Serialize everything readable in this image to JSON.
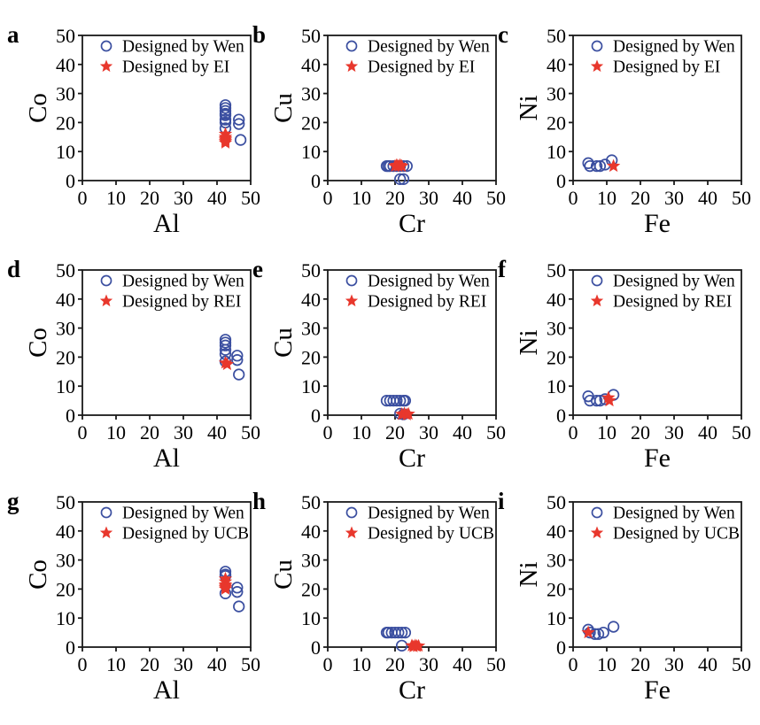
{
  "figure": {
    "background": "#ffffff",
    "axis_color": "#1a1a1a",
    "text_color": "#000000",
    "wen_color": "#3b4fa0",
    "designed_color": "#e8372c"
  },
  "chart_data": [
    {
      "id": "a",
      "type": "scatter",
      "xlabel": "Al",
      "ylabel": "Co",
      "xlim": [
        0,
        50
      ],
      "ylim": [
        0,
        50
      ],
      "xticks": [
        0,
        10,
        20,
        30,
        40,
        50
      ],
      "yticks": [
        0,
        10,
        20,
        30,
        40,
        50
      ],
      "grid": false,
      "legend_position": "top-left-inside",
      "series": [
        {
          "name": "Designed by Wen",
          "marker": "circle",
          "color": "#3b4fa0",
          "points": [
            [
              42.5,
              26
            ],
            [
              42.5,
              25
            ],
            [
              42.5,
              24
            ],
            [
              42.5,
              23
            ],
            [
              42.5,
              22.5
            ],
            [
              42.5,
              21
            ],
            [
              42.5,
              20
            ],
            [
              42.5,
              18
            ],
            [
              46.5,
              21
            ],
            [
              46.5,
              19.5
            ],
            [
              47,
              14
            ]
          ]
        },
        {
          "name": "Designed by EI",
          "marker": "star",
          "color": "#e8372c",
          "points": [
            [
              42.5,
              16
            ],
            [
              42.5,
              15
            ],
            [
              42.5,
              14.5
            ],
            [
              42.5,
              14
            ],
            [
              42.5,
              13.5
            ],
            [
              42.5,
              13
            ]
          ]
        }
      ]
    },
    {
      "id": "b",
      "type": "scatter",
      "xlabel": "Cr",
      "ylabel": "Cu",
      "xlim": [
        0,
        50
      ],
      "ylim": [
        0,
        50
      ],
      "xticks": [
        0,
        10,
        20,
        30,
        40,
        50
      ],
      "yticks": [
        0,
        10,
        20,
        30,
        40,
        50
      ],
      "grid": false,
      "legend_position": "top-left-inside",
      "series": [
        {
          "name": "Designed by Wen",
          "marker": "circle",
          "color": "#3b4fa0",
          "points": [
            [
              17.5,
              5
            ],
            [
              18,
              5
            ],
            [
              18.5,
              5
            ],
            [
              19.5,
              5
            ],
            [
              20.5,
              5
            ],
            [
              21.5,
              5
            ],
            [
              22.5,
              5
            ],
            [
              23.5,
              5
            ],
            [
              21.5,
              0.5
            ],
            [
              22.5,
              0.5
            ]
          ]
        },
        {
          "name": "Designed by EI",
          "marker": "star",
          "color": "#e8372c",
          "points": [
            [
              20,
              5
            ],
            [
              20.5,
              5.3
            ],
            [
              21,
              5
            ],
            [
              21.5,
              5.3
            ],
            [
              22,
              5
            ]
          ]
        }
      ]
    },
    {
      "id": "c",
      "type": "scatter",
      "xlabel": "Fe",
      "ylabel": "Ni",
      "xlim": [
        0,
        50
      ],
      "ylim": [
        0,
        50
      ],
      "xticks": [
        0,
        10,
        20,
        30,
        40,
        50
      ],
      "yticks": [
        0,
        10,
        20,
        30,
        40,
        50
      ],
      "grid": false,
      "legend_position": "top-left-inside",
      "series": [
        {
          "name": "Designed by Wen",
          "marker": "circle",
          "color": "#3b4fa0",
          "points": [
            [
              4.5,
              6
            ],
            [
              5,
              5
            ],
            [
              7,
              5
            ],
            [
              8,
              5
            ],
            [
              9.5,
              5.5
            ],
            [
              11.5,
              7
            ]
          ]
        },
        {
          "name": "Designed by EI",
          "marker": "star",
          "color": "#e8372c",
          "points": [
            [
              12,
              5
            ]
          ]
        }
      ]
    },
    {
      "id": "d",
      "type": "scatter",
      "xlabel": "Al",
      "ylabel": "Co",
      "xlim": [
        0,
        50
      ],
      "ylim": [
        0,
        50
      ],
      "xticks": [
        0,
        10,
        20,
        30,
        40,
        50
      ],
      "yticks": [
        0,
        10,
        20,
        30,
        40,
        50
      ],
      "grid": false,
      "legend_position": "top-left-inside",
      "series": [
        {
          "name": "Designed by Wen",
          "marker": "circle",
          "color": "#3b4fa0",
          "points": [
            [
              42.5,
              26
            ],
            [
              42.5,
              25
            ],
            [
              42.5,
              24
            ],
            [
              42.5,
              22.5
            ],
            [
              42.5,
              21
            ],
            [
              42.5,
              18.5
            ],
            [
              46,
              20.5
            ],
            [
              46,
              19
            ],
            [
              46.5,
              14
            ]
          ]
        },
        {
          "name": "Designed by REI",
          "marker": "star",
          "color": "#e8372c",
          "points": [
            [
              42.5,
              18
            ],
            [
              43,
              17.5
            ]
          ]
        }
      ]
    },
    {
      "id": "e",
      "type": "scatter",
      "xlabel": "Cr",
      "ylabel": "Cu",
      "xlim": [
        0,
        50
      ],
      "ylim": [
        0,
        50
      ],
      "xticks": [
        0,
        10,
        20,
        30,
        40,
        50
      ],
      "yticks": [
        0,
        10,
        20,
        30,
        40,
        50
      ],
      "grid": false,
      "legend_position": "top-left-inside",
      "series": [
        {
          "name": "Designed by Wen",
          "marker": "circle",
          "color": "#3b4fa0",
          "points": [
            [
              17.5,
              5
            ],
            [
              18.5,
              5
            ],
            [
              19.5,
              5
            ],
            [
              20.5,
              5
            ],
            [
              21.5,
              5
            ],
            [
              22.5,
              5
            ],
            [
              23,
              5
            ],
            [
              21.5,
              0.5
            ],
            [
              22.5,
              0.3
            ]
          ]
        },
        {
          "name": "Designed by REI",
          "marker": "star",
          "color": "#e8372c",
          "points": [
            [
              22,
              0.3
            ],
            [
              22.8,
              0.5
            ],
            [
              23.5,
              0.2
            ],
            [
              24,
              0.4
            ]
          ]
        }
      ]
    },
    {
      "id": "f",
      "type": "scatter",
      "xlabel": "Fe",
      "ylabel": "Ni",
      "xlim": [
        0,
        50
      ],
      "ylim": [
        0,
        50
      ],
      "xticks": [
        0,
        10,
        20,
        30,
        40,
        50
      ],
      "yticks": [
        0,
        10,
        20,
        30,
        40,
        50
      ],
      "grid": false,
      "legend_position": "top-left-inside",
      "series": [
        {
          "name": "Designed by Wen",
          "marker": "circle",
          "color": "#3b4fa0",
          "points": [
            [
              4.5,
              6.5
            ],
            [
              5,
              5
            ],
            [
              7,
              5
            ],
            [
              8,
              5
            ],
            [
              9.5,
              5.5
            ],
            [
              12,
              7
            ]
          ]
        },
        {
          "name": "Designed by REI",
          "marker": "star",
          "color": "#e8372c",
          "points": [
            [
              10.5,
              6
            ],
            [
              10.8,
              5
            ]
          ]
        }
      ]
    },
    {
      "id": "g",
      "type": "scatter",
      "xlabel": "Al",
      "ylabel": "Co",
      "xlim": [
        0,
        50
      ],
      "ylim": [
        0,
        50
      ],
      "xticks": [
        0,
        10,
        20,
        30,
        40,
        50
      ],
      "yticks": [
        0,
        10,
        20,
        30,
        40,
        50
      ],
      "grid": false,
      "legend_position": "top-left-inside",
      "series": [
        {
          "name": "Designed by Wen",
          "marker": "circle",
          "color": "#3b4fa0",
          "points": [
            [
              42.5,
              26
            ],
            [
              42.5,
              25
            ],
            [
              42.5,
              24.5
            ],
            [
              42.5,
              18.5
            ],
            [
              46,
              20.5
            ],
            [
              46,
              19
            ],
            [
              46.5,
              14
            ]
          ]
        },
        {
          "name": "Designed by UCB",
          "marker": "star",
          "color": "#e8372c",
          "points": [
            [
              42.5,
              23.5
            ],
            [
              42.5,
              22.5
            ],
            [
              42.5,
              21.5
            ],
            [
              42.5,
              21
            ],
            [
              42.5,
              20.5
            ],
            [
              42.5,
              20
            ]
          ]
        }
      ]
    },
    {
      "id": "h",
      "type": "scatter",
      "xlabel": "Cr",
      "ylabel": "Cu",
      "xlim": [
        0,
        50
      ],
      "ylim": [
        0,
        50
      ],
      "xticks": [
        0,
        10,
        20,
        30,
        40,
        50
      ],
      "yticks": [
        0,
        10,
        20,
        30,
        40,
        50
      ],
      "grid": false,
      "legend_position": "top-left-inside",
      "series": [
        {
          "name": "Designed by Wen",
          "marker": "circle",
          "color": "#3b4fa0",
          "points": [
            [
              17.5,
              5
            ],
            [
              18,
              5
            ],
            [
              19,
              5
            ],
            [
              20,
              5
            ],
            [
              21,
              5
            ],
            [
              22,
              5
            ],
            [
              23,
              5
            ],
            [
              22,
              0.5
            ]
          ]
        },
        {
          "name": "Designed by UCB",
          "marker": "star",
          "color": "#e8372c",
          "points": [
            [
              25,
              0.5
            ],
            [
              25.5,
              0.2
            ],
            [
              26,
              0.5
            ],
            [
              26.5,
              0.3
            ],
            [
              27,
              0.4
            ]
          ]
        }
      ]
    },
    {
      "id": "i",
      "type": "scatter",
      "xlabel": "Fe",
      "ylabel": "Ni",
      "xlim": [
        0,
        50
      ],
      "ylim": [
        0,
        50
      ],
      "xticks": [
        0,
        10,
        20,
        30,
        40,
        50
      ],
      "yticks": [
        0,
        10,
        20,
        30,
        40,
        50
      ],
      "grid": false,
      "legend_position": "top-left-inside",
      "series": [
        {
          "name": "Designed by Wen",
          "marker": "circle",
          "color": "#3b4fa0",
          "points": [
            [
              4.5,
              6
            ],
            [
              5,
              5
            ],
            [
              6.5,
              4.5
            ],
            [
              7.5,
              4.5
            ],
            [
              9,
              5
            ],
            [
              12,
              7
            ]
          ]
        },
        {
          "name": "Designed by UCB",
          "marker": "star",
          "color": "#e8372c",
          "points": [
            [
              4.5,
              5
            ]
          ]
        }
      ]
    }
  ]
}
